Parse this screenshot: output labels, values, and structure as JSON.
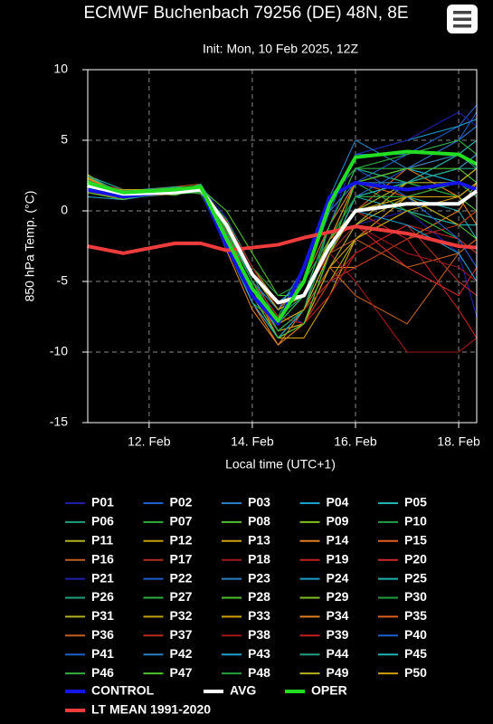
{
  "chart_data": {
    "type": "line",
    "title": "ECMWF Buchenbach 79256 (DE) 48N, 8E",
    "subtitle": "Init: Mon, 10 Feb 2025, 12Z",
    "y_label": "850 hPa Temp. (°C)",
    "x_label": "Local time (UTC+1)",
    "xlim": [
      10.81,
      18.35
    ],
    "xticks": [
      {
        "value": 12,
        "label": "12. Feb"
      },
      {
        "value": 14,
        "label": "14. Feb"
      },
      {
        "value": 16,
        "label": "16. Feb"
      },
      {
        "value": 18,
        "label": "18. Feb"
      }
    ],
    "ylim": [
      -15,
      10
    ],
    "yticks": [
      -15,
      -10,
      -5,
      0,
      5,
      10
    ],
    "grid": true,
    "x": [
      10.8,
      11.5,
      12.5,
      13.0,
      13.5,
      14.0,
      14.5,
      15.0,
      15.5,
      16.0,
      17.0,
      18.0,
      18.35
    ],
    "series": [
      {
        "name": "P01",
        "color": "#1f1fa8",
        "values": [
          1.5,
          1.3,
          1.2,
          1.8,
          -0.5,
          -4,
          -7,
          -8,
          -4,
          -1,
          0,
          -3,
          -7.5
        ]
      },
      {
        "name": "P02",
        "color": "#1f5fc8",
        "values": [
          2.2,
          1.0,
          1.6,
          1.4,
          -1.5,
          -5,
          -8,
          -6,
          -1,
          2,
          4,
          6,
          7.5
        ]
      },
      {
        "name": "P03",
        "color": "#2a7fc0",
        "values": [
          1.8,
          1.2,
          1.5,
          1.7,
          -2,
          -6,
          -8.5,
          -7,
          -2,
          1,
          2,
          3,
          2
        ]
      },
      {
        "name": "P04",
        "color": "#1f9fcf",
        "values": [
          1.0,
          0.8,
          1.4,
          1.5,
          -1,
          -5,
          -7,
          -5,
          0,
          4,
          5,
          6,
          6.5
        ]
      },
      {
        "name": "P05",
        "color": "#20b0b0",
        "values": [
          2.5,
          1.5,
          1.3,
          1.6,
          -2.5,
          -6.5,
          -9,
          -8,
          -3,
          -1,
          1,
          0,
          -2
        ]
      },
      {
        "name": "P06",
        "color": "#20a080",
        "values": [
          1.9,
          0.9,
          1.2,
          1.9,
          -1,
          -4.5,
          -8,
          -7,
          -1,
          3,
          2,
          4,
          3
        ]
      },
      {
        "name": "P07",
        "color": "#30b040",
        "values": [
          2.0,
          1.1,
          1.5,
          1.2,
          -1.8,
          -5.5,
          -8,
          -5,
          1,
          3,
          3,
          2,
          1
        ]
      },
      {
        "name": "P08",
        "color": "#50c030",
        "values": [
          1.6,
          1.4,
          1.1,
          1.6,
          0,
          -3,
          -6,
          -6,
          -3,
          1,
          1,
          -1,
          -2
        ]
      },
      {
        "name": "P09",
        "color": "#80c020",
        "values": [
          2.3,
          0.8,
          1.7,
          1.5,
          -2,
          -6,
          -9,
          -7,
          -2,
          2,
          3,
          5,
          6
        ]
      },
      {
        "name": "P10",
        "color": "#20a040",
        "values": [
          1.4,
          1.2,
          1.3,
          1.8,
          -1.2,
          -5,
          -7.5,
          -4,
          1,
          3,
          2,
          3,
          4
        ]
      },
      {
        "name": "P11",
        "color": "#b0b020",
        "values": [
          2.6,
          1.0,
          1.4,
          1.4,
          -2.2,
          -6,
          -8.5,
          -8,
          -5,
          -2,
          0,
          -1,
          0
        ]
      },
      {
        "name": "P12",
        "color": "#c0a010",
        "values": [
          1.7,
          1.3,
          1.6,
          1.7,
          -0.8,
          -4,
          -6.5,
          -6,
          -2,
          -1,
          1,
          2,
          3
        ]
      },
      {
        "name": "P13",
        "color": "#d0a010",
        "values": [
          2.1,
          1.2,
          1.2,
          1.5,
          -1.5,
          -5.5,
          -9,
          -9,
          -6,
          -2,
          1,
          2,
          1
        ]
      },
      {
        "name": "P14",
        "color": "#e08020",
        "values": [
          1.3,
          0.9,
          1.5,
          1.6,
          -2.8,
          -7,
          -9.5,
          -8,
          -4,
          -4,
          -2,
          0,
          2
        ]
      },
      {
        "name": "P15",
        "color": "#e06020",
        "values": [
          1.9,
          1.5,
          1.3,
          1.3,
          -1,
          -4.5,
          -7,
          -6,
          -3,
          0,
          3,
          4,
          5
        ]
      },
      {
        "name": "P16",
        "color": "#c06020",
        "values": [
          2.4,
          1.1,
          1.7,
          1.9,
          -1.6,
          -5,
          -8,
          -7,
          -4,
          -6,
          -8,
          -3,
          -2
        ]
      },
      {
        "name": "P17",
        "color": "#b03020",
        "values": [
          1.5,
          1.0,
          1.2,
          1.5,
          -2,
          -6,
          -9,
          -8,
          -5,
          -3,
          -1,
          -5,
          -6
        ]
      },
      {
        "name": "P18",
        "color": "#a01818",
        "values": [
          2.0,
          1.3,
          1.4,
          1.6,
          -1.3,
          -5,
          -8.5,
          -7,
          -3,
          -5,
          -10,
          -10,
          -9
        ]
      },
      {
        "name": "P19",
        "color": "#c02020",
        "values": [
          1.8,
          1.1,
          1.5,
          1.4,
          -0.7,
          -4,
          -7,
          -5,
          -2,
          0,
          -2,
          -7,
          -9
        ]
      },
      {
        "name": "P20",
        "color": "#d02828",
        "values": [
          2.2,
          1.4,
          1.3,
          1.7,
          -1.9,
          -5.5,
          -8,
          -6,
          -2,
          -1,
          -4,
          -6,
          -4
        ]
      },
      {
        "name": "P21",
        "color": "#1f1fa8",
        "values": [
          1.6,
          1.2,
          1.6,
          1.5,
          -1,
          -5,
          -7.5,
          -6,
          -1,
          4,
          5,
          7,
          6
        ]
      },
      {
        "name": "P22",
        "color": "#1f5fc8",
        "values": [
          2.0,
          0.9,
          1.4,
          1.8,
          -2.3,
          -6,
          -8,
          -5,
          0,
          4,
          4,
          5,
          6
        ]
      },
      {
        "name": "P23",
        "color": "#2a7fc0",
        "values": [
          1.4,
          1.3,
          1.2,
          1.6,
          -1.5,
          -5,
          -7,
          -4,
          1,
          5,
          3,
          4,
          5
        ]
      },
      {
        "name": "P24",
        "color": "#1f9fcf",
        "values": [
          2.5,
          1.0,
          1.5,
          1.4,
          -0.9,
          -4.5,
          -6.5,
          -5,
          -1,
          2,
          3,
          2,
          1
        ]
      },
      {
        "name": "P25",
        "color": "#20b0b0",
        "values": [
          1.7,
          1.4,
          1.7,
          1.5,
          -2,
          -6,
          -9,
          -8,
          -3,
          1,
          0,
          -1,
          -1
        ]
      },
      {
        "name": "P26",
        "color": "#20a080",
        "values": [
          2.1,
          1.1,
          1.3,
          1.9,
          -1.4,
          -5,
          -7.5,
          -6,
          -1,
          3,
          2,
          1,
          2
        ]
      },
      {
        "name": "P27",
        "color": "#30b040",
        "values": [
          1.9,
          1.5,
          1.2,
          1.3,
          -2.6,
          -6.5,
          -8,
          -7,
          -2,
          2,
          0,
          -2,
          -3
        ]
      },
      {
        "name": "P28",
        "color": "#50c030",
        "values": [
          1.3,
          0.8,
          1.6,
          1.6,
          -1.1,
          -4.5,
          -7,
          -6,
          -2,
          1,
          2,
          1,
          0
        ]
      },
      {
        "name": "P29",
        "color": "#80c020",
        "values": [
          2.3,
          1.2,
          1.4,
          1.7,
          -1.7,
          -5.5,
          -8.5,
          -7,
          -3,
          0,
          1,
          2,
          3
        ]
      },
      {
        "name": "P30",
        "color": "#20a040",
        "values": [
          1.5,
          1.3,
          1.5,
          1.4,
          -0.6,
          -4,
          -6,
          -5,
          -2,
          0,
          2,
          1,
          2
        ]
      },
      {
        "name": "P31",
        "color": "#b0b020",
        "values": [
          2.0,
          1.0,
          1.3,
          1.8,
          -2.1,
          -6,
          -9,
          -8,
          -4,
          -1,
          2,
          3,
          4
        ]
      },
      {
        "name": "P32",
        "color": "#c0a010",
        "values": [
          1.8,
          1.4,
          1.6,
          1.5,
          -1.3,
          -5,
          -8,
          -7,
          -3,
          1,
          1,
          -1,
          0
        ]
      },
      {
        "name": "P33",
        "color": "#d0a010",
        "values": [
          2.4,
          1.1,
          1.2,
          1.6,
          -1.8,
          -5.5,
          -8.5,
          -8,
          -4,
          -2,
          0,
          1,
          2
        ]
      },
      {
        "name": "P34",
        "color": "#e08020",
        "values": [
          1.6,
          1.2,
          1.5,
          1.7,
          -2.4,
          -6.5,
          -9.5,
          -7,
          -2,
          2,
          3,
          1,
          -1
        ]
      },
      {
        "name": "P35",
        "color": "#e06020",
        "values": [
          2.2,
          0.9,
          1.4,
          1.3,
          -1,
          -4.5,
          -7,
          -5,
          -1,
          2,
          1,
          2,
          3
        ]
      },
      {
        "name": "P36",
        "color": "#c06020",
        "values": [
          1.7,
          1.3,
          1.7,
          1.5,
          -1.6,
          -5.5,
          -8,
          -6,
          -3,
          -2,
          -4,
          -3,
          -2
        ]
      },
      {
        "name": "P37",
        "color": "#b03020",
        "values": [
          2.1,
          1.5,
          1.3,
          1.8,
          -2.2,
          -6,
          -8.5,
          -7,
          -5,
          -4,
          -2,
          -1,
          0
        ]
      },
      {
        "name": "P38",
        "color": "#a01818",
        "values": [
          1.4,
          1.0,
          1.5,
          1.4,
          -0.8,
          -4,
          -7,
          -6,
          -3,
          -1,
          -3,
          -4,
          -5
        ]
      },
      {
        "name": "P39",
        "color": "#c02020",
        "values": [
          2.3,
          1.2,
          1.2,
          1.6,
          -1.4,
          -5,
          -7.5,
          -8,
          -6,
          -3,
          -1,
          -2,
          -3
        ]
      },
      {
        "name": "P40",
        "color": "#1f5fc8",
        "values": [
          1.9,
          1.4,
          1.6,
          1.7,
          -2,
          -6,
          -9,
          -7,
          -2,
          1,
          3,
          5,
          7
        ]
      },
      {
        "name": "P41",
        "color": "#1f5fc8",
        "values": [
          1.5,
          1.1,
          1.4,
          1.5,
          -1.2,
          -5,
          -8,
          -6,
          -1,
          3,
          1,
          -2,
          -4
        ]
      },
      {
        "name": "P42",
        "color": "#2a7fc0",
        "values": [
          2.0,
          1.3,
          1.3,
          1.4,
          -1.7,
          -5.5,
          -8,
          -5,
          0,
          2,
          2,
          3,
          4
        ]
      },
      {
        "name": "P43",
        "color": "#1f9fcf",
        "values": [
          1.8,
          0.9,
          1.5,
          1.8,
          -2.5,
          -6.5,
          -9,
          -7,
          -3,
          0,
          -1,
          -3,
          -5
        ]
      },
      {
        "name": "P44",
        "color": "#20a080",
        "values": [
          2.5,
          1.2,
          1.7,
          1.6,
          -1,
          -4.5,
          -7,
          -6,
          -2,
          1,
          2,
          3,
          3
        ]
      },
      {
        "name": "P45",
        "color": "#20b0b0",
        "values": [
          1.6,
          1.4,
          1.2,
          1.5,
          -1.9,
          -5.5,
          -8.5,
          -7,
          -3,
          1,
          2,
          4,
          5
        ]
      },
      {
        "name": "P46",
        "color": "#30b040",
        "values": [
          2.2,
          1.0,
          1.4,
          1.3,
          -1.3,
          -5,
          -8,
          -6,
          -1,
          3,
          4,
          5,
          4
        ]
      },
      {
        "name": "P47",
        "color": "#50c030",
        "values": [
          1.7,
          1.3,
          1.6,
          1.7,
          -2.1,
          -6,
          -9,
          -8,
          -3,
          2,
          3,
          3,
          2
        ]
      },
      {
        "name": "P48",
        "color": "#20a040",
        "values": [
          2.1,
          1.1,
          1.3,
          1.6,
          -1.5,
          -5,
          -8.5,
          -7,
          -2,
          1,
          1,
          2,
          1
        ]
      },
      {
        "name": "P49",
        "color": "#b0b020",
        "values": [
          1.4,
          1.5,
          1.5,
          1.4,
          -0.9,
          -4.5,
          -7,
          -6,
          -2,
          0,
          2,
          2,
          3
        ]
      },
      {
        "name": "P50",
        "color": "#d0a010",
        "values": [
          2.3,
          1.2,
          1.4,
          1.8,
          -1.8,
          -5.5,
          -8,
          -7,
          -3,
          0,
          1,
          1,
          2
        ]
      },
      {
        "name": "CONTROL",
        "color": "#1414e6",
        "values": [
          1.5,
          1,
          1.4,
          1.6,
          -2.5,
          -6,
          -8,
          -4,
          1,
          2,
          1.5,
          2,
          1.5
        ]
      },
      {
        "name": "LT MEAN 1991-2020",
        "color": "#ee3b3b",
        "values": [
          -2.5,
          -3,
          -2.3,
          -2.3,
          -2.8,
          -2.6,
          -2.4,
          -1.9,
          -1.5,
          -1.1,
          -1.6,
          -2.5,
          -2.6
        ]
      },
      {
        "name": "AVG",
        "color": "#ffffff",
        "values": [
          1.8,
          1.2,
          1.3,
          1.5,
          -1,
          -4.5,
          -6.5,
          -6,
          -2.5,
          0,
          0.5,
          0.5,
          1.4
        ]
      },
      {
        "name": "OPER",
        "color": "#22dd22",
        "values": [
          2,
          1.3,
          1.5,
          1.7,
          -2,
          -5.5,
          -7.8,
          -5,
          0.5,
          3.8,
          4.2,
          4,
          3.3
        ]
      }
    ]
  }
}
